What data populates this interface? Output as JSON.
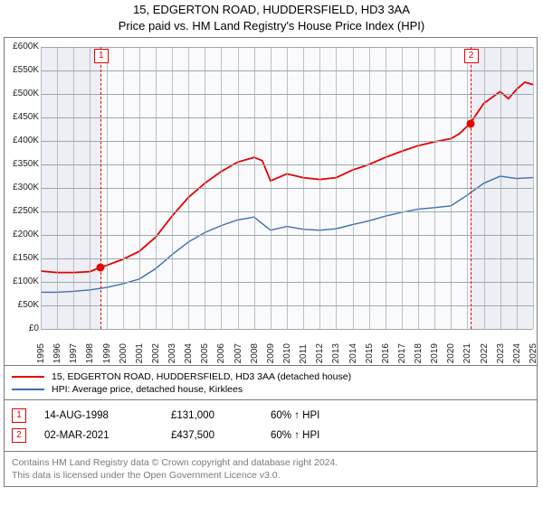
{
  "title_line1": "15, EDGERTON ROAD, HUDDERSFIELD, HD3 3AA",
  "title_line2": "Price paid vs. HM Land Registry's House Price Index (HPI)",
  "colors": {
    "series_price": "#e60000",
    "series_hpi": "#3e6db3",
    "plot_bg": "#eeeef5",
    "band_bg": "#ffffff",
    "grid": "#99aabb",
    "border": "#7b7b7b",
    "foot_text": "#7a7a7a"
  },
  "chart": {
    "xlim": [
      1995,
      2025
    ],
    "ylim": [
      0,
      600000
    ],
    "ytick_step": 50000,
    "yticks": [
      "£0",
      "£50K",
      "£100K",
      "£150K",
      "£200K",
      "£250K",
      "£300K",
      "£350K",
      "£400K",
      "£450K",
      "£500K",
      "£550K",
      "£600K"
    ],
    "xticks": [
      1995,
      1996,
      1997,
      1998,
      1999,
      2000,
      2001,
      2002,
      2003,
      2004,
      2005,
      2006,
      2007,
      2008,
      2009,
      2010,
      2011,
      2012,
      2013,
      2014,
      2015,
      2016,
      2017,
      2018,
      2019,
      2020,
      2021,
      2022,
      2023,
      2024,
      2025
    ],
    "band": [
      1998.63,
      2021.17
    ],
    "price_series": [
      [
        1995.0,
        123000
      ],
      [
        1996.0,
        120000
      ],
      [
        1997.0,
        120000
      ],
      [
        1998.0,
        122000
      ],
      [
        1998.63,
        131000
      ],
      [
        1999.0,
        135000
      ],
      [
        2000.0,
        148000
      ],
      [
        2001.0,
        165000
      ],
      [
        2002.0,
        195000
      ],
      [
        2003.0,
        240000
      ],
      [
        2004.0,
        280000
      ],
      [
        2005.0,
        310000
      ],
      [
        2006.0,
        335000
      ],
      [
        2007.0,
        355000
      ],
      [
        2008.0,
        365000
      ],
      [
        2008.5,
        358000
      ],
      [
        2009.0,
        315000
      ],
      [
        2010.0,
        330000
      ],
      [
        2011.0,
        322000
      ],
      [
        2012.0,
        318000
      ],
      [
        2013.0,
        322000
      ],
      [
        2014.0,
        338000
      ],
      [
        2015.0,
        350000
      ],
      [
        2016.0,
        365000
      ],
      [
        2017.0,
        378000
      ],
      [
        2018.0,
        390000
      ],
      [
        2019.0,
        398000
      ],
      [
        2020.0,
        405000
      ],
      [
        2020.5,
        415000
      ],
      [
        2021.17,
        437500
      ],
      [
        2022.0,
        480000
      ],
      [
        2023.0,
        505000
      ],
      [
        2023.5,
        490000
      ],
      [
        2024.0,
        510000
      ],
      [
        2024.5,
        525000
      ],
      [
        2025.0,
        520000
      ]
    ],
    "hpi_series": [
      [
        1995.0,
        78000
      ],
      [
        1996.0,
        78000
      ],
      [
        1997.0,
        80000
      ],
      [
        1998.0,
        83000
      ],
      [
        1999.0,
        88000
      ],
      [
        2000.0,
        96000
      ],
      [
        2001.0,
        106000
      ],
      [
        2002.0,
        128000
      ],
      [
        2003.0,
        158000
      ],
      [
        2004.0,
        185000
      ],
      [
        2005.0,
        205000
      ],
      [
        2006.0,
        220000
      ],
      [
        2007.0,
        232000
      ],
      [
        2008.0,
        238000
      ],
      [
        2009.0,
        210000
      ],
      [
        2010.0,
        218000
      ],
      [
        2011.0,
        212000
      ],
      [
        2012.0,
        210000
      ],
      [
        2013.0,
        213000
      ],
      [
        2014.0,
        222000
      ],
      [
        2015.0,
        230000
      ],
      [
        2016.0,
        240000
      ],
      [
        2017.0,
        248000
      ],
      [
        2018.0,
        255000
      ],
      [
        2019.0,
        258000
      ],
      [
        2020.0,
        262000
      ],
      [
        2021.0,
        285000
      ],
      [
        2022.0,
        310000
      ],
      [
        2023.0,
        325000
      ],
      [
        2024.0,
        320000
      ],
      [
        2025.0,
        322000
      ]
    ],
    "sales_markers": [
      {
        "n": "1",
        "x": 1998.63,
        "y": 131000
      },
      {
        "n": "2",
        "x": 2021.17,
        "y": 437500
      }
    ],
    "line_width_price": 1.8,
    "line_width_hpi": 1.4
  },
  "legend": {
    "items": [
      {
        "color": "#e60000",
        "label": "15, EDGERTON ROAD, HUDDERSFIELD, HD3 3AA (detached house)"
      },
      {
        "color": "#3e6db3",
        "label": "HPI: Average price, detached house, Kirklees"
      }
    ]
  },
  "sales_table": [
    {
      "n": "1",
      "date": "14-AUG-1998",
      "price": "£131,000",
      "note": "60% ↑ HPI"
    },
    {
      "n": "2",
      "date": "02-MAR-2021",
      "price": "£437,500",
      "note": "60% ↑ HPI"
    }
  ],
  "footer_lines": [
    "Contains HM Land Registry data © Crown copyright and database right 2024.",
    "This data is licensed under the Open Government Licence v3.0."
  ]
}
